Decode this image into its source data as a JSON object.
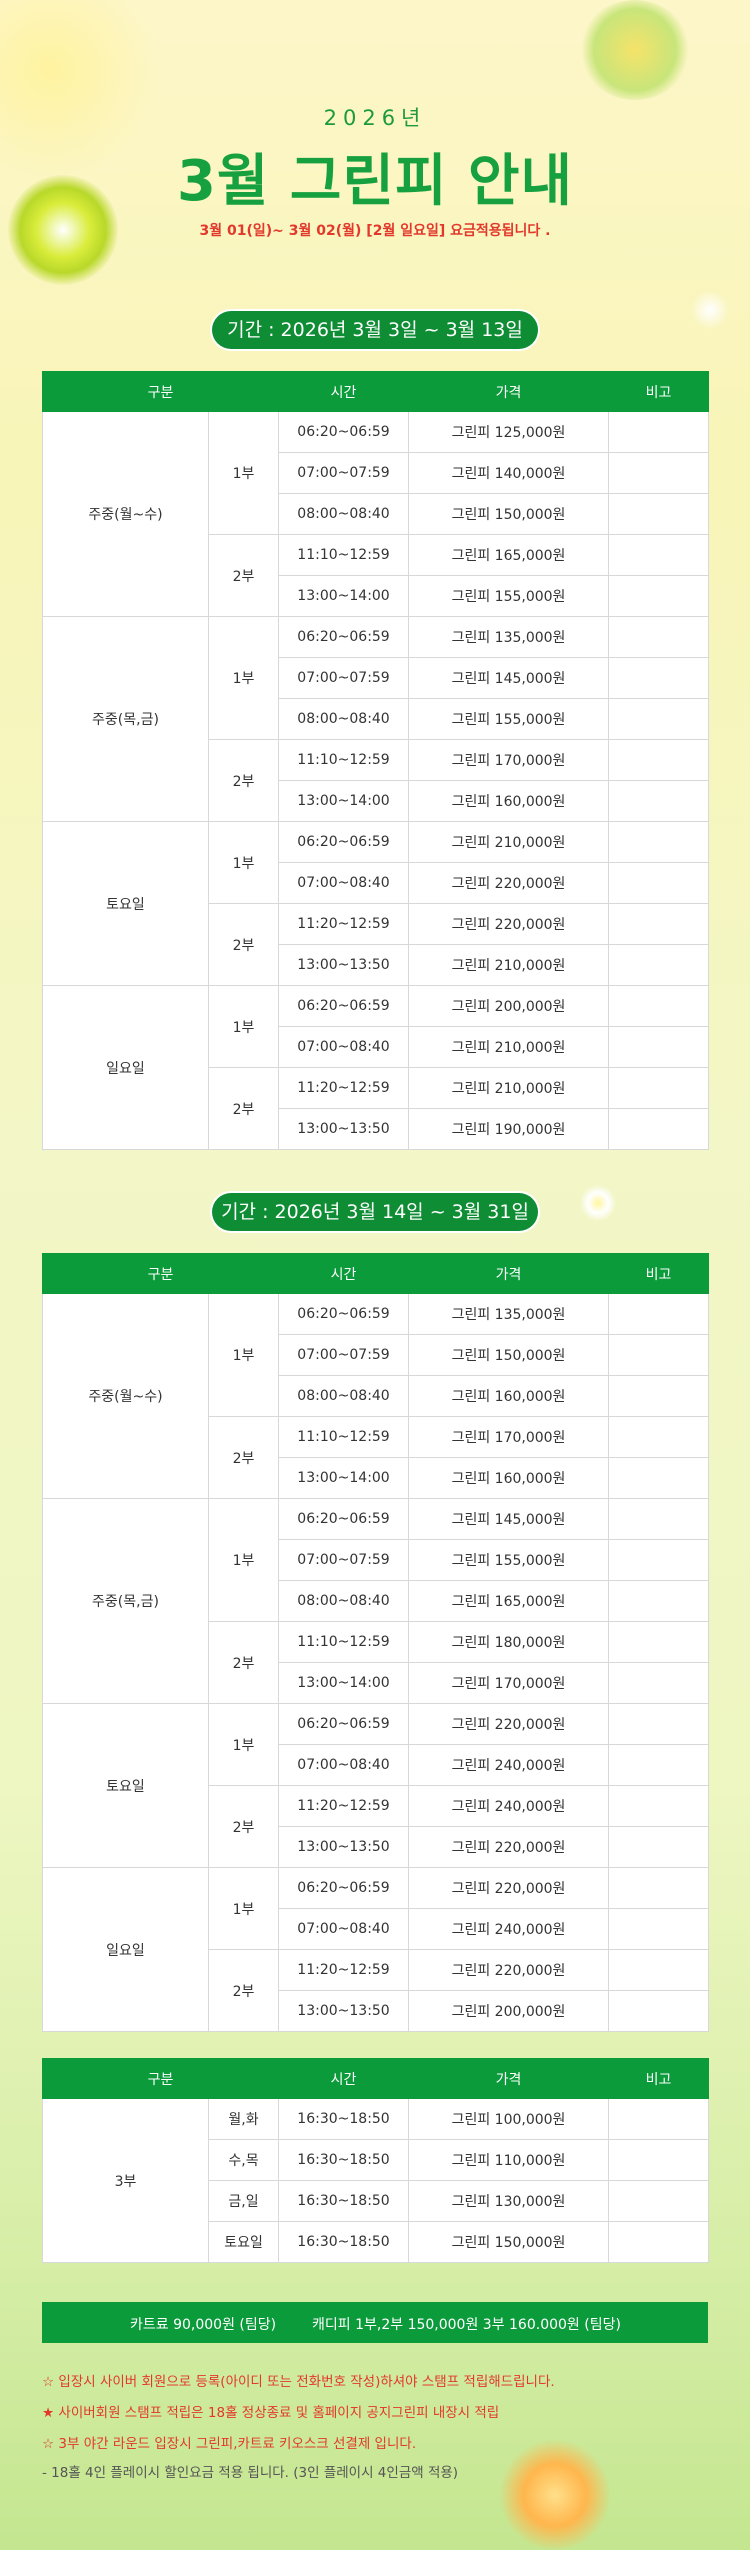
{
  "header": {
    "year": "2026년",
    "title": "3월 그린피 안내",
    "notice": "3월 01(일)~ 3월 02(월)  [2월 일요일] 요금적용됩니다 ."
  },
  "sections": [
    {
      "period": "기간 : 2026년 3월 3일 ~ 3월  13일",
      "columns": [
        "구분",
        "시간",
        "가격",
        "비고"
      ],
      "groups": [
        {
          "name": "주중(월~수)",
          "parts": [
            {
              "name": "1부",
              "rows": [
                [
                  "06:20~06:59",
                  "그린피 125,000원"
                ],
                [
                  "07:00~07:59",
                  "그린피 140,000원"
                ],
                [
                  "08:00~08:40",
                  "그린피 150,000원"
                ]
              ]
            },
            {
              "name": "2부",
              "rows": [
                [
                  "11:10~12:59",
                  "그린피 165,000원"
                ],
                [
                  "13:00~14:00",
                  "그린피 155,000원"
                ]
              ]
            }
          ]
        },
        {
          "name": "주중(목,금)",
          "parts": [
            {
              "name": "1부",
              "rows": [
                [
                  "06:20~06:59",
                  "그린피 135,000원"
                ],
                [
                  "07:00~07:59",
                  "그린피 145,000원"
                ],
                [
                  "08:00~08:40",
                  "그린피 155,000원"
                ]
              ]
            },
            {
              "name": "2부",
              "rows": [
                [
                  "11:10~12:59",
                  "그린피 170,000원"
                ],
                [
                  "13:00~14:00",
                  "그린피 160,000원"
                ]
              ]
            }
          ]
        },
        {
          "name": "토요일",
          "parts": [
            {
              "name": "1부",
              "rows": [
                [
                  "06:20~06:59",
                  "그린피 210,000원"
                ],
                [
                  "07:00~08:40",
                  "그린피 220,000원"
                ]
              ]
            },
            {
              "name": "2부",
              "rows": [
                [
                  "11:20~12:59",
                  "그린피 220,000원"
                ],
                [
                  "13:00~13:50",
                  "그린피 210,000원"
                ]
              ]
            }
          ]
        },
        {
          "name": "일요일",
          "parts": [
            {
              "name": "1부",
              "rows": [
                [
                  "06:20~06:59",
                  "그린피 200,000원"
                ],
                [
                  "07:00~08:40",
                  "그린피 210,000원"
                ]
              ]
            },
            {
              "name": "2부",
              "rows": [
                [
                  "11:20~12:59",
                  "그린피 210,000원"
                ],
                [
                  "13:00~13:50",
                  "그린피 190,000원"
                ]
              ]
            }
          ]
        }
      ]
    },
    {
      "period": "기간 : 2026년 3월 14일 ~ 3월 31일",
      "columns": [
        "구분",
        "시간",
        "가격",
        "비고"
      ],
      "groups": [
        {
          "name": "주중(월~수)",
          "parts": [
            {
              "name": "1부",
              "rows": [
                [
                  "06:20~06:59",
                  "그린피 135,000원"
                ],
                [
                  "07:00~07:59",
                  "그린피 150,000원"
                ],
                [
                  "08:00~08:40",
                  "그린피 160,000원"
                ]
              ]
            },
            {
              "name": "2부",
              "rows": [
                [
                  "11:10~12:59",
                  "그린피 170,000원"
                ],
                [
                  "13:00~14:00",
                  "그린피 160,000원"
                ]
              ]
            }
          ]
        },
        {
          "name": "주중(목,금)",
          "parts": [
            {
              "name": "1부",
              "rows": [
                [
                  "06:20~06:59",
                  "그린피 145,000원"
                ],
                [
                  "07:00~07:59",
                  "그린피 155,000원"
                ],
                [
                  "08:00~08:40",
                  "그린피 165,000원"
                ]
              ]
            },
            {
              "name": "2부",
              "rows": [
                [
                  "11:10~12:59",
                  "그린피 180,000원"
                ],
                [
                  "13:00~14:00",
                  "그린피 170,000원"
                ]
              ]
            }
          ]
        },
        {
          "name": "토요일",
          "parts": [
            {
              "name": "1부",
              "rows": [
                [
                  "06:20~06:59",
                  "그린피 220,000원"
                ],
                [
                  "07:00~08:40",
                  "그린피 240,000원"
                ]
              ]
            },
            {
              "name": "2부",
              "rows": [
                [
                  "11:20~12:59",
                  "그린피 240,000원"
                ],
                [
                  "13:00~13:50",
                  "그린피 220,000원"
                ]
              ]
            }
          ]
        },
        {
          "name": "일요일",
          "parts": [
            {
              "name": "1부",
              "rows": [
                [
                  "06:20~06:59",
                  "그린피 220,000원"
                ],
                [
                  "07:00~08:40",
                  "그린피 240,000원"
                ]
              ]
            },
            {
              "name": "2부",
              "rows": [
                [
                  "11:20~12:59",
                  "그린피 220,000원"
                ],
                [
                  "13:00~13:50",
                  "그린피 200,000원"
                ]
              ]
            }
          ]
        }
      ]
    }
  ],
  "night": {
    "columns": [
      "구분",
      "시간",
      "가격",
      "비고"
    ],
    "group": "3부",
    "rows": [
      [
        "월,화",
        "16:30~18:50",
        "그린피 100,000원"
      ],
      [
        "수,목",
        "16:30~18:50",
        "그린피 110,000원"
      ],
      [
        "금,일",
        "16:30~18:50",
        "그린피 130,000원"
      ],
      [
        "토요일",
        "16:30~18:50",
        "그린피 150,000원"
      ]
    ]
  },
  "footer": {
    "cart": "카트료 90,000원 (팀당)",
    "caddie": "캐디피 1부,2부  150,000원  3부 160.000원 (팀당)"
  },
  "notes": [
    "☆ 입장시 사이버 회원으로 등록(아이디 또는 전화번호 작성)하셔야 스탬프 적립해드립니다.",
    "★ 사이버회원 스탬프 적립은 18홀 정상종료 및 홈페이지 공지그린피 내장시 적립",
    "☆ 3부 야간 라운드 입장시 그린피,카트료 키오스크 선결제 입니다.",
    "- 18홀 4인 플레이시 할인요금 적용 됩니다. (3인 플레이시 4인금액 적용)"
  ]
}
